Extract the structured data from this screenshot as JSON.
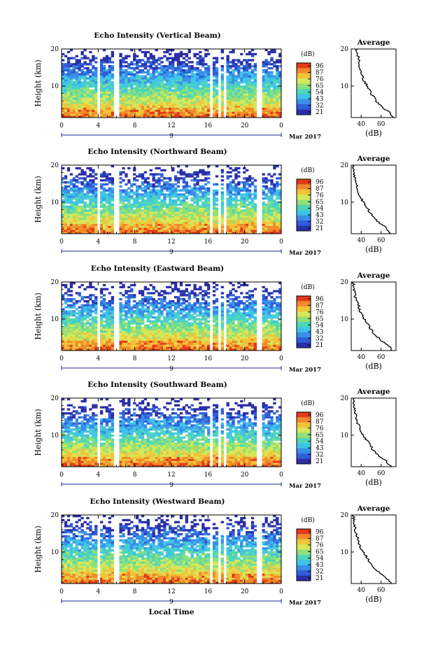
{
  "colors": {
    "scale": [
      "#2b2fa8",
      "#2f5ed8",
      "#3a8fe8",
      "#3fc4e8",
      "#4fd6b8",
      "#8ee07a",
      "#d6e85a",
      "#f2c43a",
      "#f08a2a",
      "#e23a1a"
    ]
  },
  "common": {
    "ylabel": "Height (km)",
    "cb_unit": "(dB)",
    "cb_ticks": [
      "96",
      "87",
      "76",
      "65",
      "54",
      "43",
      "32",
      "21"
    ],
    "avg_title": "Average",
    "avg_xlabel": "(dB)",
    "avg_xticks": [
      "40",
      "60"
    ],
    "time_ticks": [
      "0",
      "4",
      "8",
      "12",
      "16",
      "20",
      "0"
    ],
    "date_day": "9",
    "date_label": "Mar 2017",
    "xlabel": "Local Time"
  },
  "chart_data": [
    {
      "type": "heatmap",
      "title": "Echo Intensity (Vertical Beam)",
      "xlabel": "Local Time",
      "ylabel": "Height (km)",
      "xlim": [
        0,
        24
      ],
      "ylim": [
        1.5,
        20
      ],
      "yticks": [
        10,
        20
      ],
      "colorbar": {
        "label": "(dB)",
        "range": [
          21,
          96
        ]
      },
      "gaps_hours": [
        [
          3.9,
          4.3
        ],
        [
          5.7,
          6.2
        ],
        [
          16.2,
          16.6
        ],
        [
          17.1,
          17.4
        ],
        [
          17.7,
          18.0
        ],
        [
          21.4,
          21.8
        ]
      ],
      "profile": [
        [
          72,
          1.5
        ],
        [
          68,
          3
        ],
        [
          60,
          4.5
        ],
        [
          55,
          6
        ],
        [
          50,
          8
        ],
        [
          46,
          10
        ],
        [
          42,
          12
        ],
        [
          40,
          14
        ],
        [
          38,
          16
        ],
        [
          37,
          18
        ],
        [
          35,
          20
        ]
      ]
    },
    {
      "type": "heatmap",
      "title": "Echo Intensity (Northward Beam)",
      "xlabel": "Local Time",
      "ylabel": "Height (km)",
      "xlim": [
        0,
        24
      ],
      "ylim": [
        1.5,
        20
      ],
      "yticks": [
        10,
        20
      ],
      "colorbar": {
        "label": "(dB)",
        "range": [
          21,
          96
        ]
      },
      "gaps_hours": [
        [
          3.9,
          4.3
        ],
        [
          5.7,
          6.2
        ],
        [
          16.2,
          16.6
        ],
        [
          17.1,
          17.4
        ],
        [
          17.7,
          18.0
        ],
        [
          21.4,
          21.8
        ]
      ],
      "profile": [
        [
          70,
          1.5
        ],
        [
          66,
          3
        ],
        [
          58,
          4.5
        ],
        [
          52,
          6
        ],
        [
          47,
          8
        ],
        [
          42,
          10
        ],
        [
          38,
          12
        ],
        [
          36,
          14
        ],
        [
          34,
          16
        ],
        [
          33,
          18
        ],
        [
          32,
          20
        ]
      ]
    },
    {
      "type": "heatmap",
      "title": "Echo Intensity (Eastward Beam)",
      "xlabel": "Local Time",
      "ylabel": "Height (km)",
      "xlim": [
        0,
        24
      ],
      "ylim": [
        1.5,
        20
      ],
      "yticks": [
        10,
        20
      ],
      "colorbar": {
        "label": "(dB)",
        "range": [
          21,
          96
        ]
      },
      "gaps_hours": [
        [
          3.9,
          4.3
        ],
        [
          5.7,
          6.2
        ],
        [
          16.2,
          16.6
        ],
        [
          17.1,
          17.4
        ],
        [
          17.7,
          18.0
        ],
        [
          21.4,
          21.8
        ]
      ],
      "profile": [
        [
          71,
          1.5
        ],
        [
          67,
          3
        ],
        [
          59,
          4.5
        ],
        [
          53,
          6
        ],
        [
          48,
          8
        ],
        [
          43,
          10
        ],
        [
          39,
          12
        ],
        [
          37,
          14
        ],
        [
          34,
          16
        ],
        [
          33,
          18
        ],
        [
          32,
          20
        ]
      ]
    },
    {
      "type": "heatmap",
      "title": "Echo Intensity (Southward Beam)",
      "xlabel": "Local Time",
      "ylabel": "Height (km)",
      "xlim": [
        0,
        24
      ],
      "ylim": [
        1.5,
        20
      ],
      "yticks": [
        10,
        20
      ],
      "colorbar": {
        "label": "(dB)",
        "range": [
          21,
          96
        ]
      },
      "gaps_hours": [
        [
          3.9,
          4.3
        ],
        [
          5.7,
          6.2
        ],
        [
          16.2,
          16.6
        ],
        [
          17.1,
          17.4
        ],
        [
          17.7,
          18.0
        ],
        [
          21.4,
          21.8
        ]
      ],
      "profile": [
        [
          70,
          1.5
        ],
        [
          65,
          3
        ],
        [
          58,
          4.5
        ],
        [
          52,
          6
        ],
        [
          47,
          8
        ],
        [
          42,
          10
        ],
        [
          38,
          12
        ],
        [
          36,
          14
        ],
        [
          34,
          16
        ],
        [
          33,
          18
        ],
        [
          32,
          20
        ]
      ]
    },
    {
      "type": "heatmap",
      "title": "Echo Intensity (Westward Beam)",
      "xlabel": "Local Time",
      "ylabel": "Height (km)",
      "xlim": [
        0,
        24
      ],
      "ylim": [
        1.5,
        20
      ],
      "yticks": [
        10,
        20
      ],
      "colorbar": {
        "label": "(dB)",
        "range": [
          21,
          96
        ]
      },
      "gaps_hours": [
        [
          3.9,
          4.3
        ],
        [
          5.7,
          6.2
        ],
        [
          16.2,
          16.6
        ],
        [
          17.1,
          17.4
        ],
        [
          17.7,
          18.0
        ],
        [
          21.4,
          21.8
        ]
      ],
      "profile": [
        [
          70,
          1.5
        ],
        [
          66,
          3
        ],
        [
          58,
          4.5
        ],
        [
          52,
          6
        ],
        [
          47,
          8
        ],
        [
          42,
          10
        ],
        [
          38,
          12
        ],
        [
          36,
          14
        ],
        [
          34,
          16
        ],
        [
          33,
          18
        ],
        [
          32,
          20
        ]
      ]
    }
  ]
}
